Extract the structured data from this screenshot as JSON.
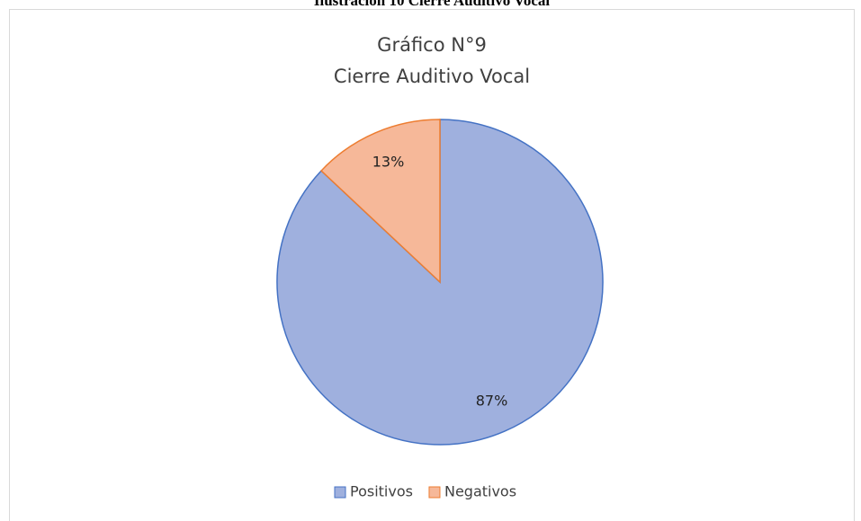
{
  "chart_data": {
    "type": "pie",
    "caption": "Ilustración 10 Cierre Auditivo Vocal",
    "title": [
      "Gráfico N°9",
      "Cierre Auditivo Vocal"
    ],
    "categories": [
      "Positivos",
      "Negativos"
    ],
    "values": [
      87,
      13
    ],
    "value_labels": [
      "87%",
      "13%"
    ],
    "colors": [
      "#9fb0de",
      "#f6b899"
    ],
    "edge_colors": [
      "#4472c4",
      "#ed7d31"
    ],
    "legend": "bottom"
  }
}
